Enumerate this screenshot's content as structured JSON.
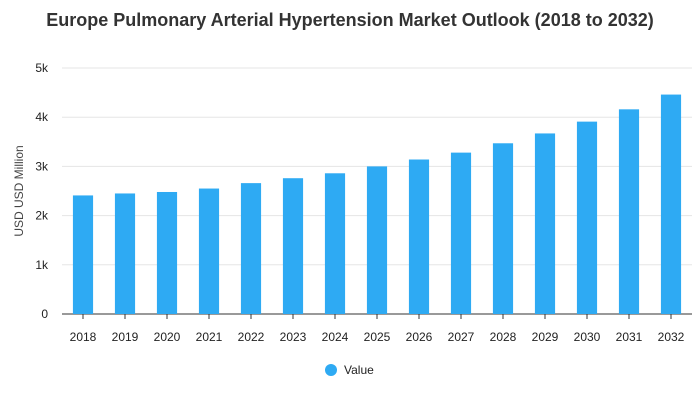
{
  "chart_data": {
    "type": "bar",
    "title": "Europe Pulmonary Arterial Hypertension Market Outlook (2018 to 2032)",
    "xlabel": "",
    "ylabel": "USD USD Million",
    "categories": [
      "2018",
      "2019",
      "2020",
      "2021",
      "2022",
      "2023",
      "2024",
      "2025",
      "2026",
      "2027",
      "2028",
      "2029",
      "2030",
      "2031",
      "2032"
    ],
    "series": [
      {
        "name": "Value",
        "values": [
          2410,
          2450,
          2480,
          2550,
          2660,
          2760,
          2860,
          3000,
          3140,
          3280,
          3470,
          3670,
          3910,
          4160,
          4460
        ],
        "color": "#2eaaf3"
      }
    ],
    "ylim": [
      0,
      5000
    ],
    "yticks": [
      0,
      1000,
      2000,
      3000,
      4000,
      5000
    ],
    "ytick_labels": [
      "0",
      "1k",
      "2k",
      "3k",
      "4k",
      "5k"
    ],
    "grid": true,
    "legend_position": "bottom"
  }
}
